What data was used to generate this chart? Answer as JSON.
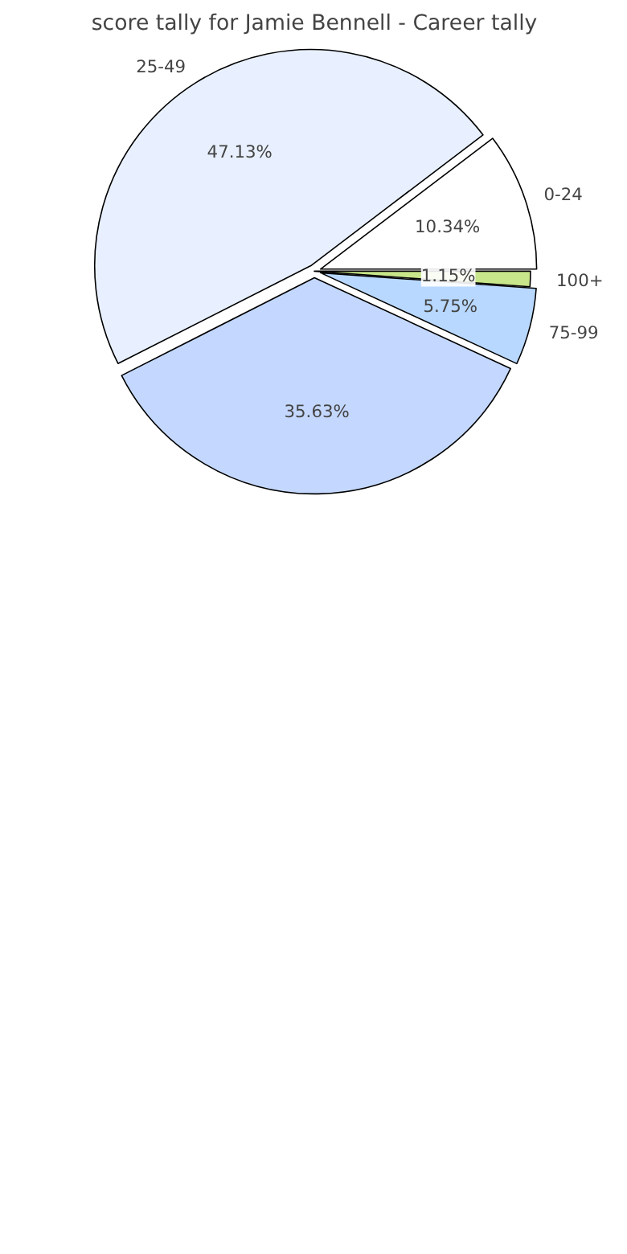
{
  "chart_data": {
    "type": "pie",
    "title": "score tally for Jamie Bennell - Career tally",
    "categories": [
      "0-24",
      "25-49",
      null,
      "75-99",
      "100+"
    ],
    "values": [
      10.34,
      47.13,
      35.63,
      5.75,
      1.15
    ],
    "value_labels": [
      "10.34%",
      "47.13%",
      "35.63%",
      "5.75%",
      "1.15%"
    ],
    "colors": [
      "#ffffff",
      "#e8f0ff",
      "#c4d8ff",
      "#b8d8ff",
      "#c8e68a"
    ]
  }
}
